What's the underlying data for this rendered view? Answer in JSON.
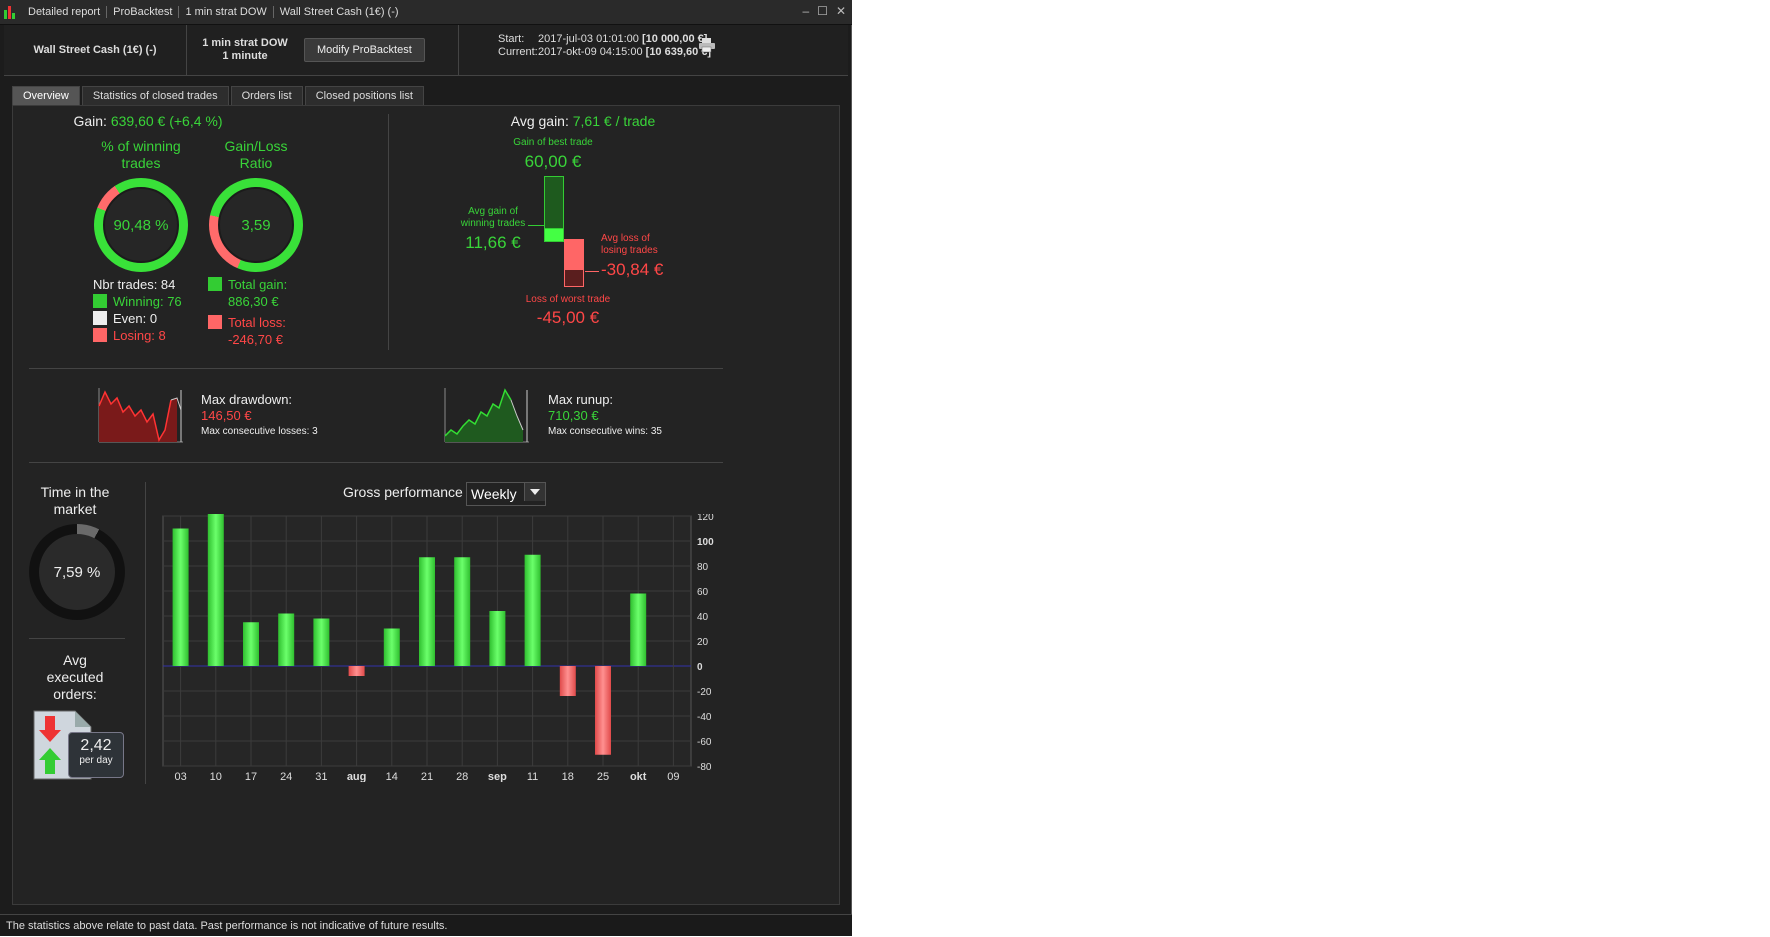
{
  "titlebar": {
    "segments": [
      "Detailed report",
      "ProBacktest",
      "1 min strat DOW",
      "Wall Street Cash (1€) (-)"
    ],
    "min": "–",
    "max": "☐",
    "close": "✕"
  },
  "header": {
    "instrument": "Wall Street Cash (1€) (-)",
    "strategy": "1 min strat DOW",
    "timeframe": "1 minute",
    "modify_label": "Modify ProBacktest",
    "start_label": "Start:",
    "start_date": "2017-jul-03 01:01:00",
    "start_value": "[10 000,00 €]",
    "current_label": "Current:",
    "current_date": "2017-okt-09 04:15:00",
    "current_value": "[10 639,60 €]"
  },
  "tabs": [
    "Overview",
    "Statistics of closed trades",
    "Orders list",
    "Closed positions list"
  ],
  "overview": {
    "gain_label": "Gain:",
    "gain_value": "639,60 € (+6,4 %)",
    "winning_title_1": "% of winning",
    "winning_title_2": "trades",
    "winning_pct": "90,48 %",
    "winning_fraction": 0.9048,
    "gl_title_1": "Gain/Loss",
    "gl_title_2": "Ratio",
    "gl_value": "3,59",
    "gl_fraction": 0.782,
    "nbr_trades": "Nbr trades: 84",
    "winning": "Winning: 76",
    "even": "Even: 0",
    "losing": "Losing: 8",
    "total_gain_label": "Total gain:",
    "total_gain": "886,30 €",
    "total_loss_label": "Total loss:",
    "total_loss": "-246,70 €",
    "avg_gain_label": "Avg gain:",
    "avg_gain_value": "7,61 € / trade",
    "best_label": "Gain of best trade",
    "best_value": "60,00 €",
    "avg_win_label_1": "Avg gain of",
    "avg_win_label_2": "winning trades",
    "avg_win_value": "11,66 €",
    "avg_loss_label_1": "Avg loss of",
    "avg_loss_label_2": "losing trades",
    "avg_loss_value": "-30,84 €",
    "worst_label": "Loss of worst trade",
    "worst_value": "-45,00 €",
    "drawdown_label": "Max drawdown:",
    "drawdown_value": "146,50 €",
    "drawdown_sub": "Max consecutive losses: 3",
    "runup_label": "Max runup:",
    "runup_value": "710,30 €",
    "runup_sub": "Max consecutive wins: 35",
    "time_label_1": "Time in the",
    "time_label_2": "market",
    "time_value": "7,59 %",
    "time_fraction": 0.0759,
    "avg_orders_1": "Avg",
    "avg_orders_2": "executed",
    "avg_orders_3": "orders:",
    "orders_value": "2,42",
    "orders_unit": "per day",
    "gross_label": "Gross performance",
    "period": "Weekly"
  },
  "colors": {
    "green": "#39d439",
    "red": "#ff4747",
    "bg": "#232323"
  },
  "chart_data": {
    "type": "bar",
    "categories": [
      "03",
      "10",
      "17",
      "24",
      "31",
      "aug",
      "14",
      "21",
      "28",
      "sep",
      "11",
      "18",
      "25",
      "okt",
      "09"
    ],
    "values": [
      110,
      122,
      35,
      42,
      38,
      -8,
      30,
      87,
      87,
      44,
      89,
      -24,
      -71,
      58,
      0
    ],
    "ylim": [
      -80,
      120
    ],
    "yticks": [
      "120",
      "100",
      "80",
      "60",
      "40",
      "20",
      "0",
      "-20",
      "-40",
      "-60",
      "-80"
    ],
    "grid": true
  },
  "footer": "The statistics above relate to past data. Past performance is not indicative of future results."
}
